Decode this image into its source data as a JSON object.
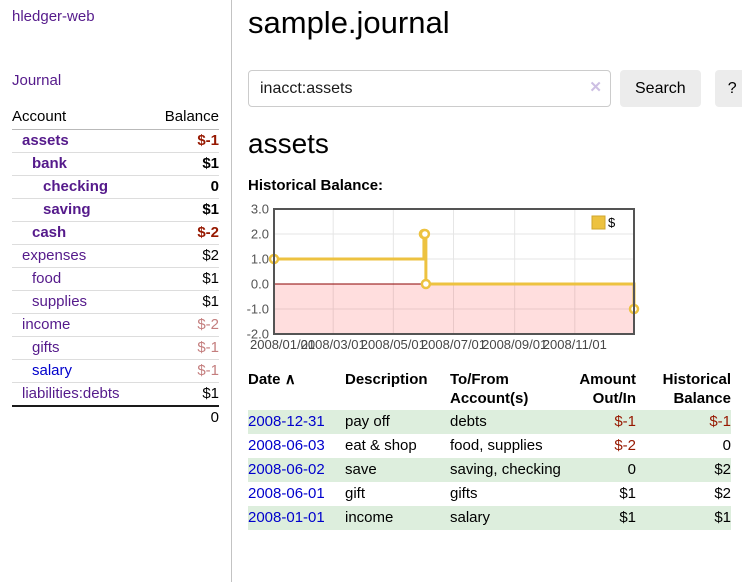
{
  "sidebar": {
    "app_title": "hledger-web",
    "nav": {
      "journal": "Journal"
    },
    "accounts": {
      "header_account": "Account",
      "header_balance": "Balance",
      "rows": [
        {
          "name": "assets",
          "level": 1,
          "bold": true,
          "link": "purple",
          "balance": "$-1",
          "balance_style": "neg-dark"
        },
        {
          "name": "bank",
          "level": 2,
          "bold": true,
          "link": "purple",
          "balance": "$1",
          "balance_style": "pos"
        },
        {
          "name": "checking",
          "level": 3,
          "bold": true,
          "link": "purple",
          "balance": "0",
          "balance_style": "pos"
        },
        {
          "name": "saving",
          "level": 3,
          "bold": true,
          "link": "purple",
          "balance": "$1",
          "balance_style": "pos"
        },
        {
          "name": "cash",
          "level": 2,
          "bold": true,
          "link": "purple",
          "balance": "$-2",
          "balance_style": "neg-dark"
        },
        {
          "name": "expenses",
          "level": 1,
          "bold": false,
          "link": "purple",
          "balance": "$2",
          "balance_style": "pos"
        },
        {
          "name": "food",
          "level": 2,
          "bold": false,
          "link": "purple",
          "balance": "$1",
          "balance_style": "pos"
        },
        {
          "name": "supplies",
          "level": 2,
          "bold": false,
          "link": "purple",
          "balance": "$1",
          "balance_style": "pos"
        },
        {
          "name": "income",
          "level": 1,
          "bold": false,
          "link": "purple",
          "balance": "$-2",
          "balance_style": "neg-light"
        },
        {
          "name": "gifts",
          "level": 2,
          "bold": false,
          "link": "purple",
          "balance": "$-1",
          "balance_style": "neg-light"
        },
        {
          "name": "salary",
          "level": 2,
          "bold": false,
          "link": "blue",
          "balance": "$-1",
          "balance_style": "neg-light"
        },
        {
          "name": "liabilities:debts",
          "level": 1,
          "bold": false,
          "link": "purple",
          "balance": "$1",
          "balance_style": "pos"
        }
      ],
      "total": "0"
    }
  },
  "main": {
    "title": "sample.journal",
    "search": {
      "value": "inacct:assets",
      "clear_icon": "✕",
      "submit_label": "Search",
      "help_label": "?"
    },
    "account_heading": "assets",
    "register": {
      "headers": {
        "date": "Date",
        "sort_icon": "∧",
        "description": "Description",
        "accounts": "To/From Account(s)",
        "amount": "Amount Out/In",
        "balance": "Historical Balance"
      },
      "rows": [
        {
          "date": "2008-12-31",
          "description": "pay off",
          "accounts": "debts",
          "amount": "$-1",
          "amount_negative": true,
          "balance": "$-1",
          "balance_negative": true
        },
        {
          "date": "2008-06-03",
          "description": "eat & shop",
          "accounts": "food, supplies",
          "amount": "$-2",
          "amount_negative": true,
          "balance": "0",
          "balance_negative": false
        },
        {
          "date": "2008-06-02",
          "description": "save",
          "accounts": "saving, checking",
          "amount": "0",
          "amount_negative": false,
          "balance": "$2",
          "balance_negative": false
        },
        {
          "date": "2008-06-01",
          "description": "gift",
          "accounts": "gifts",
          "amount": "$1",
          "amount_negative": false,
          "balance": "$2",
          "balance_negative": false
        },
        {
          "date": "2008-01-01",
          "description": "income",
          "accounts": "salary",
          "amount": "$1",
          "amount_negative": false,
          "balance": "$1",
          "balance_negative": false
        }
      ]
    }
  },
  "chart_data": {
    "type": "line",
    "title": "Historical Balance:",
    "steps": true,
    "series": [
      {
        "name": "$",
        "color": "#edc240",
        "points": [
          [
            "2008-01-01",
            1
          ],
          [
            "2008-06-01",
            2
          ],
          [
            "2008-06-02",
            2
          ],
          [
            "2008-06-03",
            0
          ],
          [
            "2008-12-31",
            -1
          ]
        ]
      }
    ],
    "x_range": [
      "2008-01-01",
      "2008-12-31"
    ],
    "x_ticks": [
      "2008/01/01",
      "2008/03/01",
      "2008/05/01",
      "2008/07/01",
      "2008/09/01",
      "2008/11/01"
    ],
    "y_ticks": [
      3.0,
      2.0,
      1.0,
      0.0,
      -1.0,
      -2.0
    ],
    "ylim": [
      -2,
      3
    ],
    "legend": {
      "label": "$",
      "position": "top-right"
    },
    "grid": true,
    "negative_region_shaded": true,
    "colors": {
      "series": "#edc240",
      "grid_line": "#e6e6e6",
      "plot_border": "#545454",
      "zero_line": "#8b0000",
      "negative_fill": "rgba(255,0,0,0.13)",
      "axis_text": "#545454"
    }
  }
}
